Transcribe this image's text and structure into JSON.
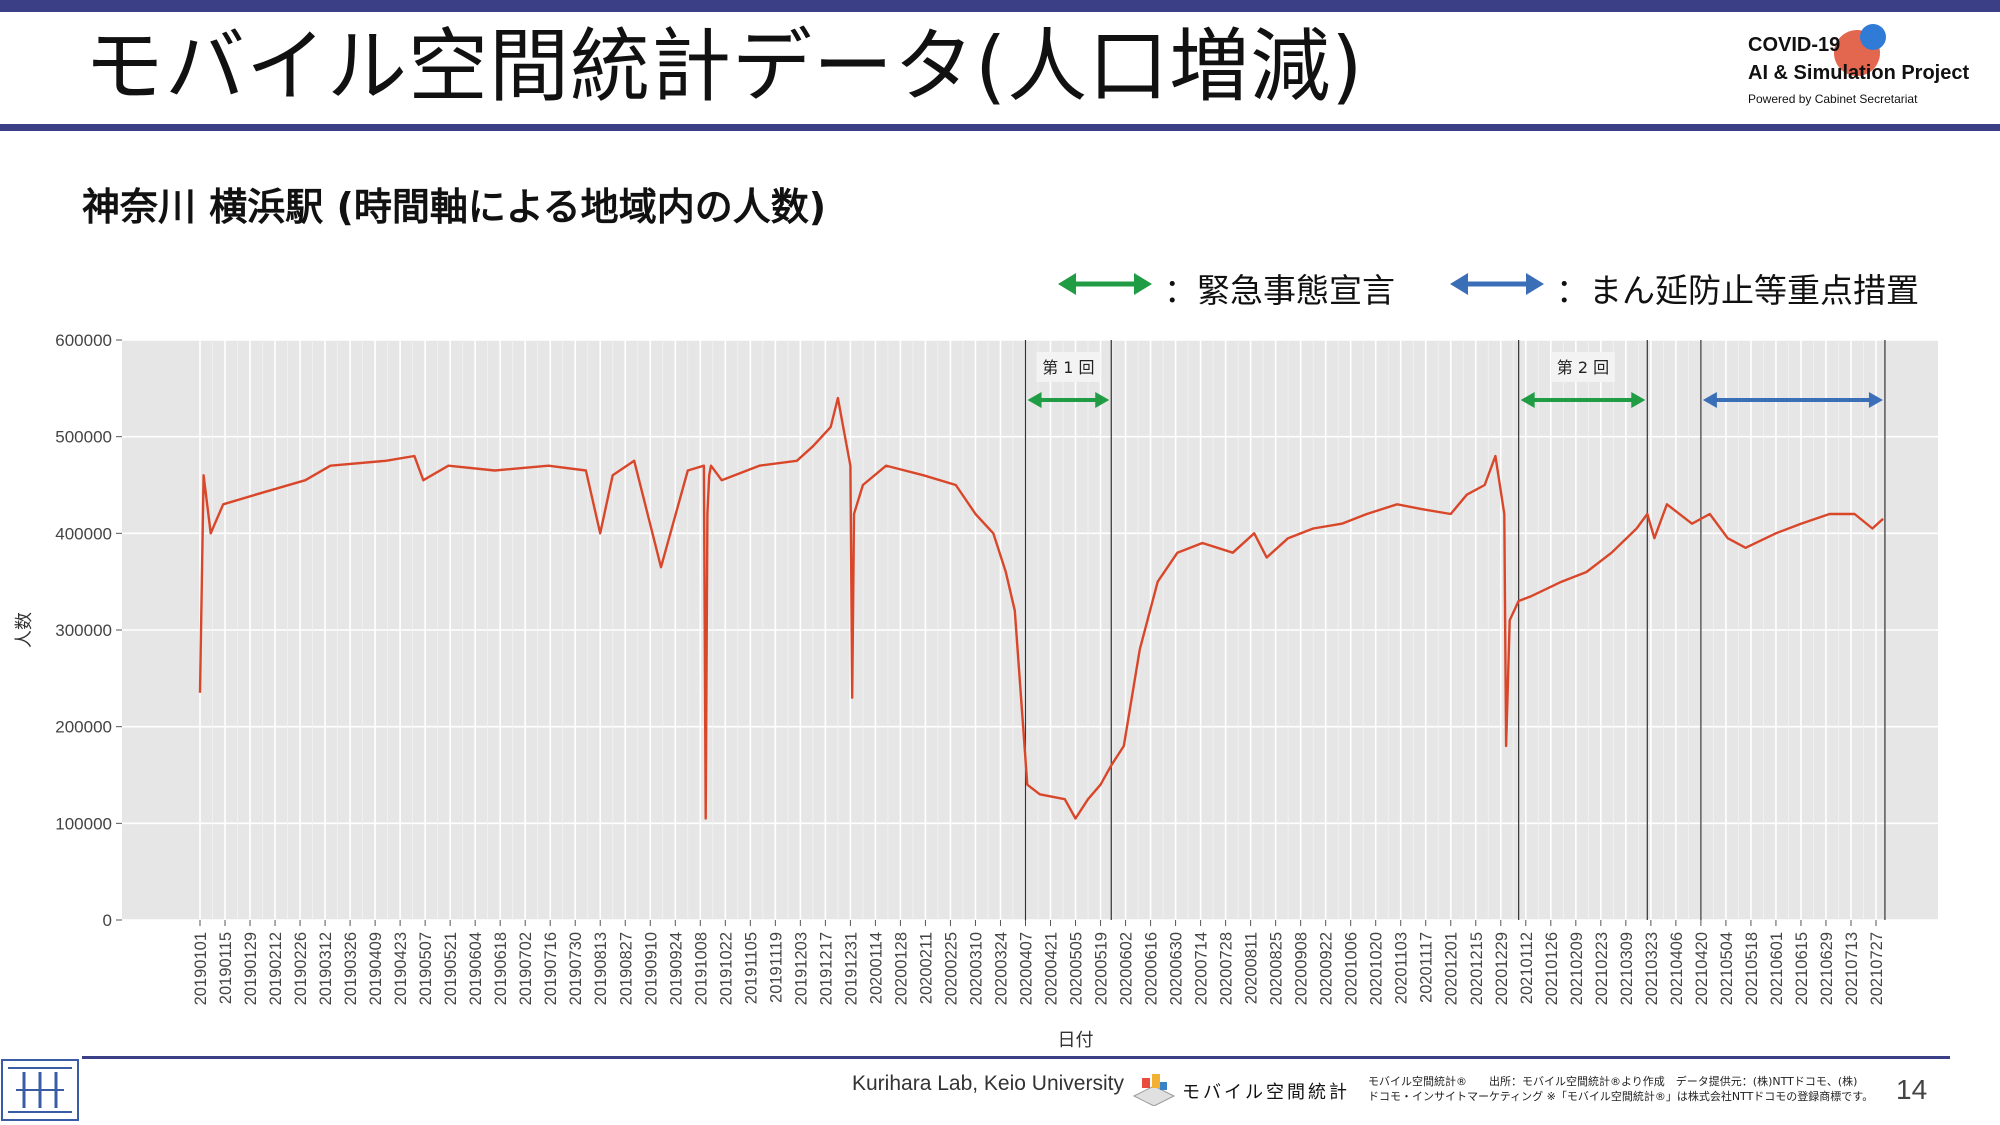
{
  "slide": {
    "title": "モバイル空間統計データ(人口増減)",
    "subtitle": "神奈川 横浜駅 (時間軸による地域内の人数)",
    "page_number": "14"
  },
  "logo": {
    "line1": "COVID-19",
    "line2": "AI & Simulation Project",
    "line3": "Powered by Cabinet Secretariat"
  },
  "legend": {
    "emergency_label": "：緊急事態宣言",
    "emergency_color": "#1f9c44",
    "priority_label": "：まん延防止等重点措置",
    "priority_color": "#3a6fb7"
  },
  "footer": {
    "credit": "Kurihara Lab, Keio University",
    "brand": "モバイル空間統計",
    "note_line1": "モバイル空間統計®　　出所：モバイル空間統計®より作成　データ提供元：(株)NTTドコモ、(株)",
    "note_line2": "ドコモ・インサイトマーケティング ※「モバイル空間統計®」は株式会社NTTドコモの登録商標です。"
  },
  "chart_data": {
    "type": "line",
    "xlabel": "日付",
    "ylabel": "人数",
    "ylim": [
      0,
      600000
    ],
    "y_ticks": [
      0,
      100000,
      200000,
      300000,
      400000,
      500000,
      600000
    ],
    "y_tick_labels": [
      "0",
      "100000",
      "200000",
      "300000",
      "400000",
      "500000",
      "600000"
    ],
    "x_start": "2019-01-01",
    "x_end": "2021-07-31",
    "x_tick_labels": [
      "20190101",
      "20190115",
      "20190129",
      "20190212",
      "20190226",
      "20190312",
      "20190326",
      "20190409",
      "20190423",
      "20190507",
      "20190521",
      "20190604",
      "20190618",
      "20190702",
      "20190716",
      "20190730",
      "20190813",
      "20190827",
      "20190910",
      "20190924",
      "20191008",
      "20191022",
      "20191105",
      "20191119",
      "20191203",
      "20191217",
      "20191231",
      "20200114",
      "20200128",
      "20200211",
      "20200225",
      "20200310",
      "20200324",
      "20200407",
      "20200421",
      "20200505",
      "20200519",
      "20200602",
      "20200616",
      "20200630",
      "20200714",
      "20200728",
      "20200811",
      "20200825",
      "20200908",
      "20200922",
      "20201006",
      "20201020",
      "20201103",
      "20201117",
      "20201201",
      "20201215",
      "20201229",
      "20210112",
      "20210126",
      "20210209",
      "20210223",
      "20210309",
      "20210323",
      "20210406",
      "20210420",
      "20210504",
      "20210518",
      "20210601",
      "20210615",
      "20210629",
      "20210713",
      "20210727"
    ],
    "series": [
      {
        "color": "#d9472b",
        "x": [
          "2019-01-01",
          "2019-01-03",
          "2019-01-07",
          "2019-01-14",
          "2019-02-01",
          "2019-03-01",
          "2019-03-15",
          "2019-04-15",
          "2019-05-01",
          "2019-05-06",
          "2019-05-20",
          "2019-06-15",
          "2019-07-15",
          "2019-08-05",
          "2019-08-13",
          "2019-08-20",
          "2019-09-01",
          "2019-09-16",
          "2019-10-01",
          "2019-10-10",
          "2019-10-11",
          "2019-10-12",
          "2019-10-13",
          "2019-10-14",
          "2019-10-20",
          "2019-11-10",
          "2019-12-01",
          "2019-12-10",
          "2019-12-20",
          "2019-12-24",
          "2019-12-28",
          "2019-12-31",
          "2020-01-01",
          "2020-01-02",
          "2020-01-07",
          "2020-01-20",
          "2020-02-10",
          "2020-02-28",
          "2020-03-10",
          "2020-03-20",
          "2020-03-27",
          "2020-04-01",
          "2020-04-08",
          "2020-04-15",
          "2020-04-29",
          "2020-05-05",
          "2020-05-12",
          "2020-05-19",
          "2020-05-25",
          "2020-06-01",
          "2020-06-10",
          "2020-06-20",
          "2020-07-01",
          "2020-07-15",
          "2020-08-01",
          "2020-08-13",
          "2020-08-20",
          "2020-09-01",
          "2020-09-15",
          "2020-10-01",
          "2020-10-15",
          "2020-11-01",
          "2020-11-15",
          "2020-12-01",
          "2020-12-10",
          "2020-12-20",
          "2020-12-26",
          "2020-12-31",
          "2021-01-01",
          "2021-01-03",
          "2021-01-08",
          "2021-01-15",
          "2021-02-01",
          "2021-02-15",
          "2021-03-01",
          "2021-03-15",
          "2021-03-21",
          "2021-03-25",
          "2021-04-01",
          "2021-04-15",
          "2021-04-25",
          "2021-05-05",
          "2021-05-15",
          "2021-06-01",
          "2021-06-15",
          "2021-07-01",
          "2021-07-15",
          "2021-07-25",
          "2021-07-31"
        ],
        "y": [
          235000,
          460000,
          400000,
          430000,
          440000,
          455000,
          470000,
          475000,
          480000,
          455000,
          470000,
          465000,
          470000,
          465000,
          400000,
          460000,
          475000,
          365000,
          465000,
          470000,
          105000,
          420000,
          460000,
          470000,
          455000,
          470000,
          475000,
          490000,
          510000,
          540000,
          500000,
          470000,
          230000,
          420000,
          450000,
          470000,
          460000,
          450000,
          420000,
          400000,
          360000,
          320000,
          140000,
          130000,
          125000,
          105000,
          125000,
          140000,
          160000,
          180000,
          280000,
          350000,
          380000,
          390000,
          380000,
          400000,
          375000,
          395000,
          405000,
          410000,
          420000,
          430000,
          425000,
          420000,
          440000,
          450000,
          480000,
          420000,
          180000,
          310000,
          330000,
          335000,
          350000,
          360000,
          380000,
          405000,
          420000,
          395000,
          430000,
          410000,
          420000,
          395000,
          385000,
          400000,
          410000,
          420000,
          420000,
          405000,
          415000
        ]
      }
    ],
    "events": [
      {
        "label": "第 1 回",
        "start": "2020-04-07",
        "end": "2020-05-25",
        "type": "緊急事態宣言"
      },
      {
        "label": "第 2 回",
        "start": "2021-01-08",
        "end": "2021-03-21",
        "type": "緊急事態宣言"
      },
      {
        "label": "",
        "start": "2021-04-20",
        "end": "2021-08-01",
        "type": "まん延防止等重点措置"
      }
    ],
    "grid": true,
    "legend_position": "top-right"
  }
}
